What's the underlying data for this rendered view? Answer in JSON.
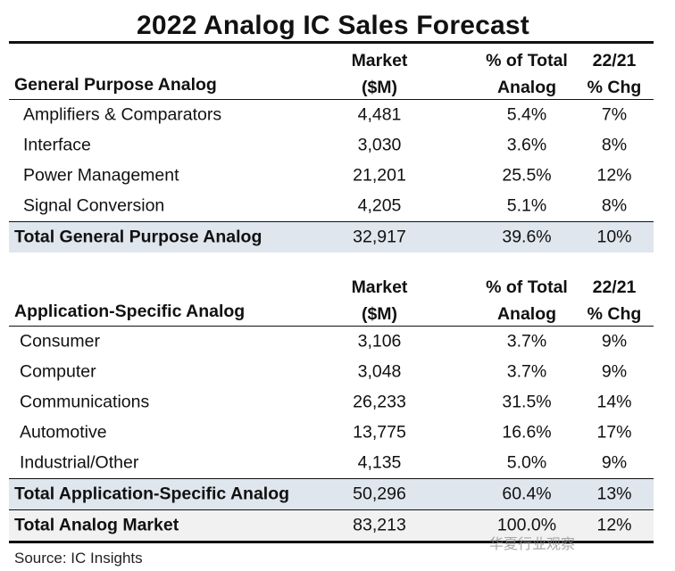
{
  "title": "2022 Analog IC Sales Forecast",
  "sections": [
    {
      "heading": "General Purpose Analog",
      "col_market": [
        "Market",
        "($M)"
      ],
      "col_pct": [
        "% of Total",
        "Analog"
      ],
      "col_chg": [
        "22/21",
        "% Chg"
      ],
      "rows": [
        {
          "label": "Amplifiers & Comparators",
          "market": "4,481",
          "pct": "5.4%",
          "chg": "7%"
        },
        {
          "label": "Interface",
          "market": "3,030",
          "pct": "3.6%",
          "chg": "8%"
        },
        {
          "label": "Power Management",
          "market": "21,201",
          "pct": "25.5%",
          "chg": "12%"
        },
        {
          "label": "Signal Conversion",
          "market": "4,205",
          "pct": "5.1%",
          "chg": "8%"
        }
      ],
      "total": {
        "label": "Total General Purpose Analog",
        "market": "32,917",
        "pct": "39.6%",
        "chg": "10%"
      }
    },
    {
      "heading": "Application-Specific Analog",
      "col_market": [
        "Market",
        "($M)"
      ],
      "col_pct": [
        "% of Total",
        "Analog"
      ],
      "col_chg": [
        "22/21",
        "% Chg"
      ],
      "rows": [
        {
          "label": "Consumer",
          "market": "3,106",
          "pct": "3.7%",
          "chg": "9%"
        },
        {
          "label": "Computer",
          "market": "3,048",
          "pct": "3.7%",
          "chg": "9%"
        },
        {
          "label": "Communications",
          "market": "26,233",
          "pct": "31.5%",
          "chg": "14%"
        },
        {
          "label": "Automotive",
          "market": "13,775",
          "pct": "16.6%",
          "chg": "17%"
        },
        {
          "label": "Industrial/Other",
          "market": "4,135",
          "pct": "5.0%",
          "chg": "9%"
        }
      ],
      "total": {
        "label": "Total Application-Specific Analog",
        "market": "50,296",
        "pct": "60.4%",
        "chg": "13%"
      }
    }
  ],
  "grand_total": {
    "label": "Total Analog Market",
    "market": "83,213",
    "pct": "100.0%",
    "chg": "12%"
  },
  "source": "Source:  IC Insights",
  "watermark": "华夏行业观察",
  "colors": {
    "total_row_bg": "#dfe6ee",
    "grand_row_bg": "#f1f1f1"
  }
}
